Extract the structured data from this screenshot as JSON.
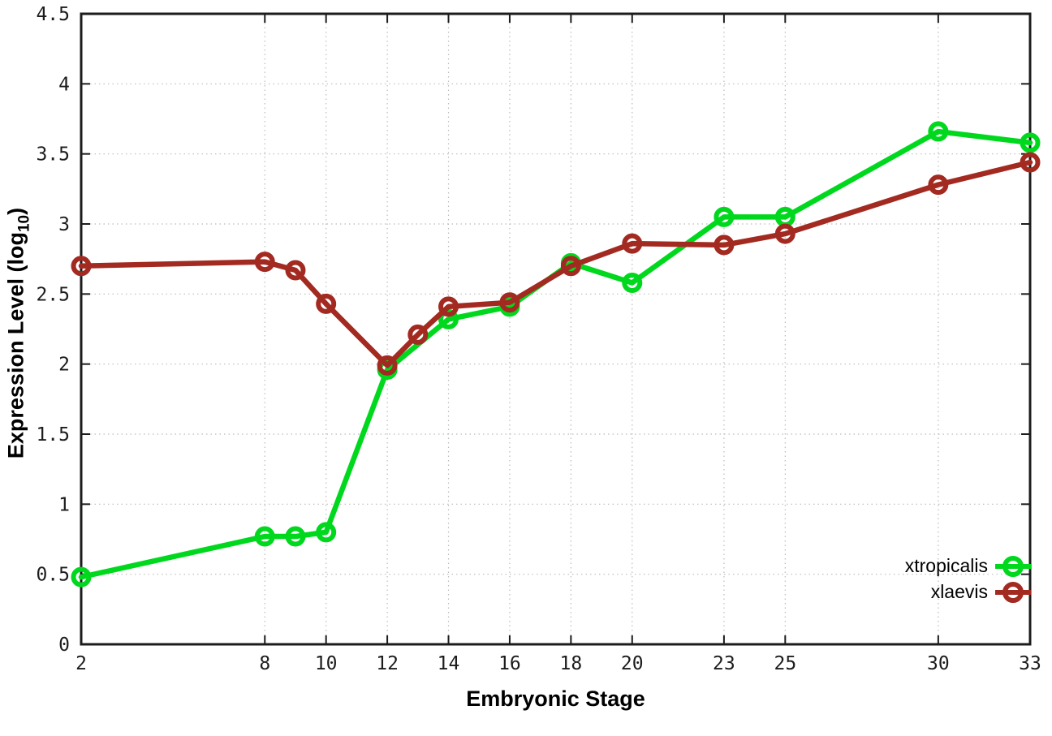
{
  "chart_data": {
    "type": "line",
    "xlabel": "Embryonic Stage",
    "ylabel": "Expression Level (log10)",
    "ylabel_parts": {
      "main": "Expression Level (log",
      "sub": "10",
      "end": ")"
    },
    "xlim": [
      2,
      33
    ],
    "ylim": [
      0,
      4.5
    ],
    "x_ticks": [
      2,
      8,
      10,
      12,
      14,
      16,
      18,
      20,
      23,
      25,
      30,
      33
    ],
    "y_ticks": [
      0,
      0.5,
      1,
      1.5,
      2,
      2.5,
      3,
      3.5,
      4,
      4.5
    ],
    "grid": true,
    "legend_position": "bottom-right",
    "colors": {
      "axis": "#1c1c1c",
      "grid": "#bbbbbb",
      "tick_label": "#1c1c1c"
    },
    "series": [
      {
        "name": "xtropicalis",
        "color": "#00d81e",
        "x": [
          2,
          8,
          9,
          10,
          12,
          14,
          16,
          18,
          20,
          23,
          25,
          30,
          33
        ],
        "y": [
          0.48,
          0.77,
          0.77,
          0.8,
          1.96,
          2.32,
          2.41,
          2.72,
          2.58,
          3.05,
          3.05,
          3.66,
          3.58
        ]
      },
      {
        "name": "xlaevis",
        "color": "#a32a21",
        "x": [
          2,
          8,
          9,
          10,
          12,
          13,
          14,
          16,
          18,
          20,
          23,
          25,
          30,
          33
        ],
        "y": [
          2.7,
          2.73,
          2.67,
          2.43,
          1.99,
          2.21,
          2.41,
          2.44,
          2.7,
          2.86,
          2.85,
          2.93,
          3.28,
          3.44
        ]
      }
    ]
  }
}
